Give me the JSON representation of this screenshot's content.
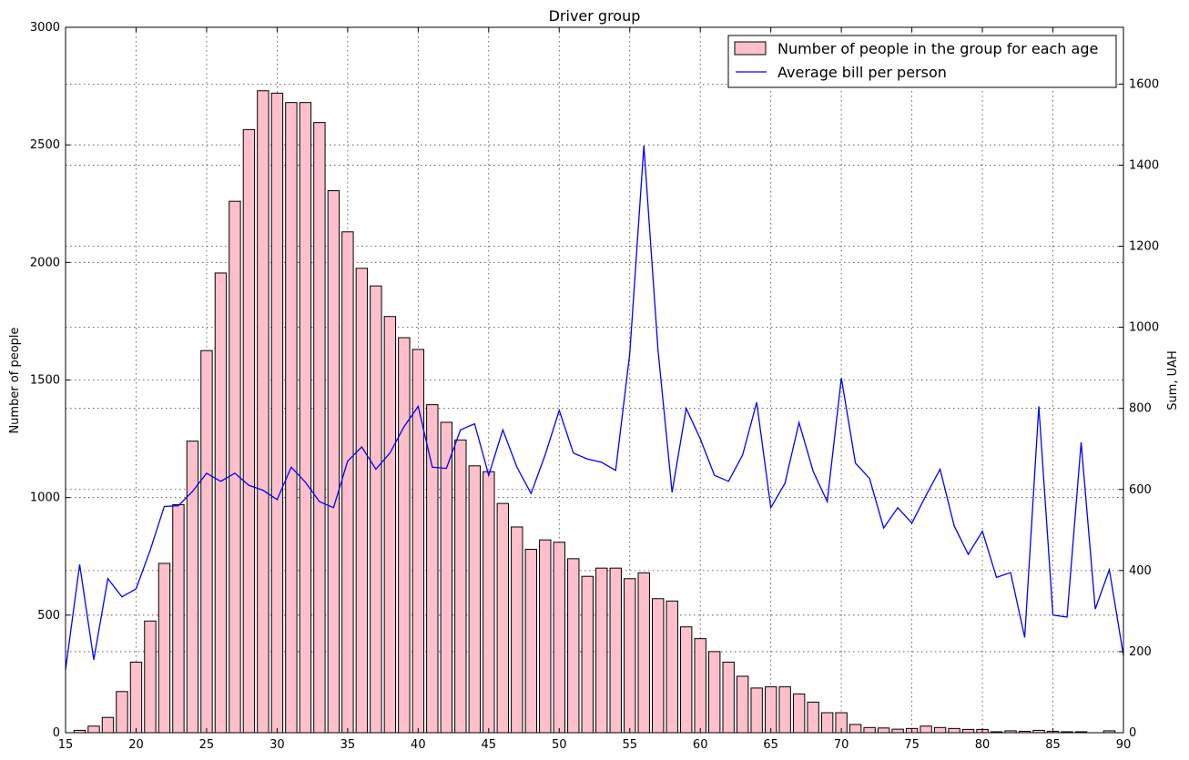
{
  "chart_data": {
    "type": "bar",
    "title": "Driver group",
    "xlabel": "",
    "ylabel": "Number of people",
    "y2label": "Sum, UAH",
    "xlim": [
      15,
      90
    ],
    "ylim": [
      0,
      3000
    ],
    "y2lim": [
      0,
      1740
    ],
    "xticks": [
      "15",
      "20",
      "25",
      "30",
      "35",
      "40",
      "45",
      "50",
      "55",
      "60",
      "65",
      "70",
      "75",
      "80",
      "85",
      "90"
    ],
    "yticks": [
      "0",
      "500",
      "1000",
      "1500",
      "2000",
      "2500",
      "3000"
    ],
    "y2ticks": [
      "0",
      "200",
      "400",
      "600",
      "800",
      "1000",
      "1200",
      "1400",
      "1600"
    ],
    "grid": true,
    "legend_position": "top-right",
    "legend": [
      "Number of people in the group for each age",
      "Average bill per person"
    ],
    "colors": {
      "bar_fill": "#ffc0cb",
      "bar_edge": "#000000",
      "line": "#0000ff"
    },
    "series": [
      {
        "name": "Number of people in the group for each age",
        "type": "bar",
        "x": [
          16,
          17,
          18,
          19,
          20,
          21,
          22,
          23,
          24,
          25,
          26,
          27,
          28,
          29,
          30,
          31,
          32,
          33,
          34,
          35,
          36,
          37,
          38,
          39,
          40,
          41,
          42,
          43,
          44,
          45,
          46,
          47,
          48,
          49,
          50,
          51,
          52,
          53,
          54,
          55,
          56,
          57,
          58,
          59,
          60,
          61,
          62,
          63,
          64,
          65,
          66,
          67,
          68,
          69,
          70,
          71,
          72,
          73,
          74,
          75,
          76,
          77,
          78,
          79,
          80,
          81,
          82,
          83,
          84,
          85,
          86,
          87,
          88,
          89
        ],
        "values": [
          10,
          28,
          65,
          175,
          300,
          475,
          720,
          970,
          1240,
          1625,
          1955,
          2260,
          2565,
          2730,
          2720,
          2680,
          2680,
          2595,
          2305,
          2130,
          1975,
          1900,
          1770,
          1680,
          1630,
          1395,
          1320,
          1245,
          1135,
          1110,
          975,
          875,
          780,
          820,
          810,
          740,
          665,
          700,
          700,
          655,
          680,
          570,
          560,
          450,
          400,
          345,
          300,
          240,
          190,
          195,
          195,
          165,
          130,
          85,
          85,
          35,
          22,
          20,
          15,
          18,
          28,
          22,
          18,
          14,
          14,
          4,
          8,
          6,
          10,
          6,
          4,
          4,
          0,
          8
        ]
      },
      {
        "name": "Average bill per person",
        "type": "line",
        "axis": "right",
        "x": [
          15,
          16,
          17,
          18,
          19,
          20,
          21,
          22,
          23,
          24,
          25,
          26,
          27,
          28,
          29,
          30,
          31,
          32,
          33,
          34,
          35,
          36,
          37,
          38,
          39,
          40,
          41,
          42,
          43,
          44,
          45,
          46,
          47,
          48,
          49,
          50,
          51,
          52,
          53,
          54,
          55,
          56,
          57,
          58,
          59,
          60,
          61,
          62,
          63,
          64,
          65,
          66,
          67,
          68,
          69,
          70,
          71,
          72,
          73,
          74,
          75,
          76,
          77,
          78,
          79,
          80,
          81,
          82,
          83,
          84,
          85,
          86,
          87,
          88,
          89,
          90
        ],
        "values": [
          155,
          415,
          180,
          380,
          335,
          355,
          450,
          558,
          560,
          595,
          640,
          620,
          640,
          610,
          598,
          575,
          655,
          618,
          570,
          555,
          670,
          705,
          650,
          690,
          755,
          805,
          655,
          652,
          747,
          762,
          635,
          747,
          655,
          590,
          685,
          795,
          690,
          675,
          667,
          647,
          935,
          1448,
          945,
          593,
          800,
          725,
          635,
          620,
          685,
          815,
          555,
          615,
          765,
          645,
          570,
          875,
          665,
          627,
          505,
          555,
          517,
          585,
          650,
          510,
          440,
          497,
          383,
          395,
          235,
          805,
          290,
          285,
          716,
          305,
          402,
          190
        ]
      }
    ]
  }
}
